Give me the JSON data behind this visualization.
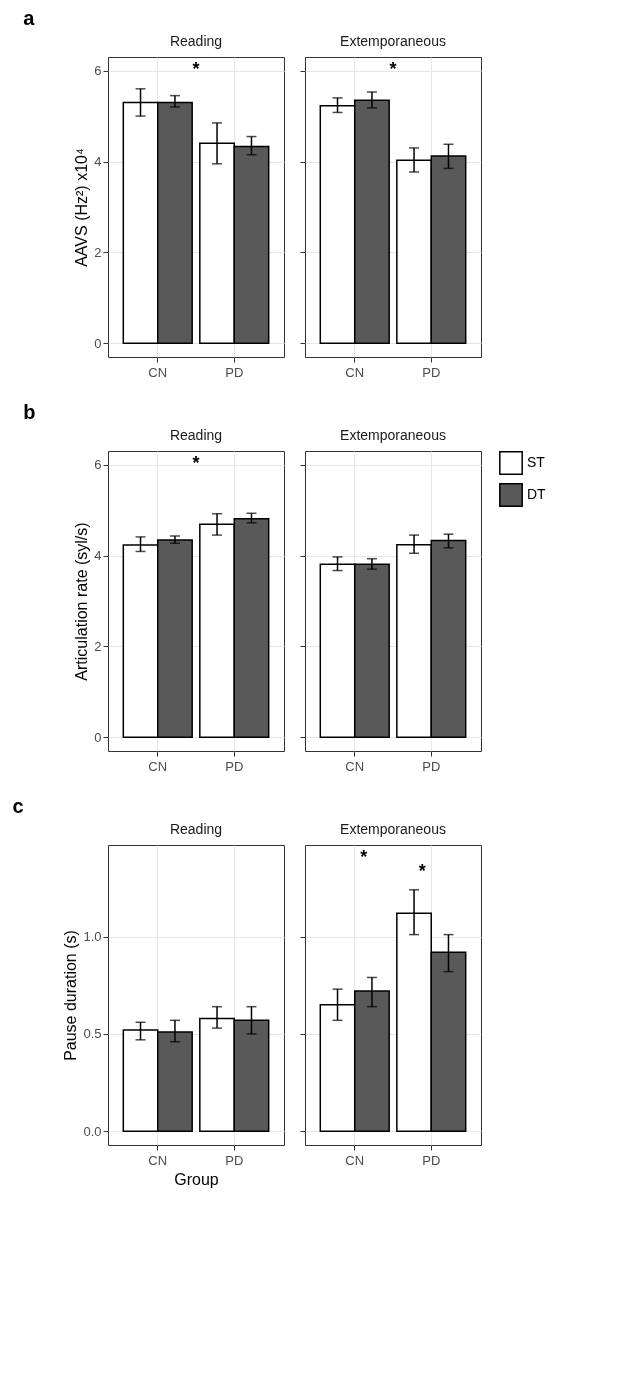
{
  "chart_data": [
    {
      "type": "bar",
      "title": "Reading",
      "ylabel": "AAVS (Hz²) x10⁴",
      "categories": [
        "CN",
        "PD"
      ],
      "ylim": [
        -0.3,
        6.3
      ],
      "yticks": [
        0,
        2,
        4,
        6
      ],
      "grid": true,
      "series": [
        {
          "color": "#ffffff",
          "values": [
            5.3,
            4.4
          ],
          "errors": [
            [
              5.0,
              5.6
            ],
            [
              3.95,
              4.85
            ]
          ]
        },
        {
          "color": "#595959",
          "values": [
            5.3,
            4.33
          ],
          "errors": [
            [
              5.2,
              5.45
            ],
            [
              4.15,
              4.55
            ]
          ]
        }
      ],
      "annotations": [
        "a",
        "*"
      ]
    },
    {
      "type": "bar",
      "title": "Extemporaneous",
      "categories": [
        "CN",
        "PD"
      ],
      "ylim": [
        -0.3,
        6.3
      ],
      "yticks": [
        0,
        2,
        4,
        6
      ],
      "grid": true,
      "tick_labels": "x",
      "series": [
        {
          "color": "#ffffff",
          "values": [
            5.23,
            4.03
          ],
          "errors": [
            [
              5.08,
              5.4
            ],
            [
              3.77,
              4.3
            ]
          ]
        },
        {
          "color": "#595959",
          "values": [
            5.35,
            4.12
          ],
          "errors": [
            [
              5.18,
              5.53
            ],
            [
              3.85,
              4.38
            ]
          ]
        }
      ],
      "annotations": [
        "*"
      ]
    },
    {
      "type": "bar",
      "title": "Reading",
      "ylabel": "Articulation rate (syl/s)",
      "categories": [
        "CN",
        "PD"
      ],
      "ylim": [
        -0.3,
        6.3
      ],
      "yticks": [
        0,
        2,
        4,
        6
      ],
      "grid": true,
      "series": [
        {
          "color": "#ffffff",
          "values": [
            4.23,
            4.69
          ],
          "errors": [
            [
              4.09,
              4.41
            ],
            [
              4.45,
              4.92
            ]
          ]
        },
        {
          "color": "#595959",
          "values": [
            4.34,
            4.81
          ],
          "errors": [
            [
              4.27,
              4.43
            ],
            [
              4.72,
              4.93
            ]
          ]
        }
      ],
      "annotations": [
        "b",
        "*"
      ]
    },
    {
      "type": "bar",
      "title": "Extemporaneous",
      "categories": [
        "CN",
        "PD"
      ],
      "ylim": [
        -0.3,
        6.3
      ],
      "yticks": [
        0,
        2,
        4,
        6
      ],
      "grid": true,
      "tick_labels": "x",
      "legend": "right",
      "series": [
        {
          "name": "ST",
          "color": "#ffffff",
          "values": [
            3.81,
            4.24
          ],
          "errors": [
            [
              3.67,
              3.97
            ],
            [
              4.05,
              4.45
            ]
          ]
        },
        {
          "name": "DT",
          "color": "#595959",
          "values": [
            3.81,
            4.33
          ],
          "errors": [
            [
              3.7,
              3.93
            ],
            [
              4.17,
              4.47
            ]
          ]
        }
      ]
    },
    {
      "type": "bar",
      "title": "Reading",
      "ylabel": "Pause duration (s)",
      "xlabel": "Group",
      "categories": [
        "CN",
        "PD"
      ],
      "ylim": [
        -0.07,
        1.47
      ],
      "yticks": [
        {
          "value": 0,
          "label": "0.0"
        },
        0.5,
        {
          "value": 1,
          "label": "1.0"
        }
      ],
      "grid": true,
      "series": [
        {
          "color": "#ffffff",
          "values": [
            0.52,
            0.58
          ],
          "errors": [
            [
              0.47,
              0.56
            ],
            [
              0.53,
              0.64
            ]
          ]
        },
        {
          "color": "#595959",
          "values": [
            0.51,
            0.57
          ],
          "errors": [
            [
              0.46,
              0.57
            ],
            [
              0.5,
              0.64
            ]
          ]
        }
      ],
      "annotations": [
        "c"
      ]
    },
    {
      "type": "bar",
      "title": "Extemporaneous",
      "categories": [
        "CN",
        "PD"
      ],
      "ylim": [
        -0.07,
        1.47
      ],
      "yticks": [
        0,
        0.5,
        1
      ],
      "grid": true,
      "tick_labels": "x",
      "series": [
        {
          "color": "#ffffff",
          "values": [
            0.65,
            1.12
          ],
          "errors": [
            [
              0.57,
              0.73
            ],
            [
              1.01,
              1.24
            ]
          ]
        },
        {
          "color": "#595959",
          "values": [
            0.72,
            0.92
          ],
          "errors": [
            [
              0.64,
              0.79
            ],
            [
              0.82,
              1.01
            ]
          ]
        }
      ],
      "annotations": [
        "*",
        "*"
      ]
    }
  ]
}
